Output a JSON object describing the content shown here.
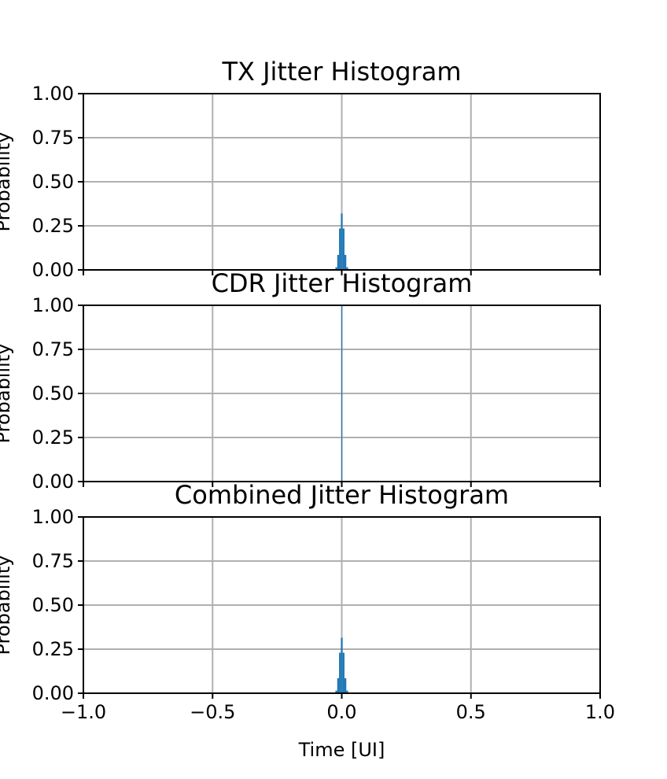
{
  "chart_data": [
    {
      "type": "bar",
      "title": "TX Jitter Histogram",
      "xlabel": "",
      "ylabel": "Probability",
      "xlim": [
        -1.0,
        1.0
      ],
      "ylim": [
        0.0,
        1.0
      ],
      "grid": true,
      "bar_color": "#1f77b4",
      "x_ticks": [
        -1.0,
        -0.5,
        0.0,
        0.5,
        1.0
      ],
      "x_tick_labels": [],
      "y_ticks": [
        0.0,
        0.25,
        0.5,
        0.75,
        1.0
      ],
      "y_tick_labels": [
        "0.00",
        "0.25",
        "0.50",
        "0.75",
        "1.00"
      ],
      "bin_width": 0.007,
      "bins": [
        {
          "x": -0.0245,
          "y": 0.015
        },
        {
          "x": -0.0175,
          "y": 0.085
        },
        {
          "x": -0.0105,
          "y": 0.235
        },
        {
          "x": -0.0035,
          "y": 0.32
        },
        {
          "x": 0.0035,
          "y": 0.235
        },
        {
          "x": 0.0105,
          "y": 0.085
        },
        {
          "x": 0.0175,
          "y": 0.015
        }
      ]
    },
    {
      "type": "bar",
      "title": "CDR Jitter Histogram",
      "xlabel": "",
      "ylabel": "Probability",
      "xlim": [
        -1.0,
        1.0
      ],
      "ylim": [
        0.0,
        1.0
      ],
      "grid": true,
      "bar_color": "#1f77b4",
      "x_ticks": [
        -1.0,
        -0.5,
        0.0,
        0.5,
        1.0
      ],
      "x_tick_labels": [],
      "y_ticks": [
        0.0,
        0.25,
        0.5,
        0.75,
        1.0
      ],
      "y_tick_labels": [
        "0.00",
        "0.25",
        "0.50",
        "0.75",
        "1.00"
      ],
      "bin_width": 0.003,
      "bins": [
        {
          "x": -0.0015,
          "y": 1.0
        }
      ]
    },
    {
      "type": "bar",
      "title": "Combined Jitter Histogram",
      "xlabel": "Time [UI]",
      "ylabel": "Probability",
      "xlim": [
        -1.0,
        1.0
      ],
      "ylim": [
        0.0,
        1.0
      ],
      "grid": true,
      "bar_color": "#1f77b4",
      "x_ticks": [
        -1.0,
        -0.5,
        0.0,
        0.5,
        1.0
      ],
      "x_tick_labels": [
        "−1.0",
        "−0.5",
        "0.0",
        "0.5",
        "1.0"
      ],
      "y_ticks": [
        0.0,
        0.25,
        0.5,
        0.75,
        1.0
      ],
      "y_tick_labels": [
        "0.00",
        "0.25",
        "0.50",
        "0.75",
        "1.00"
      ],
      "bin_width": 0.007,
      "bins": [
        {
          "x": -0.0245,
          "y": 0.015
        },
        {
          "x": -0.0175,
          "y": 0.085
        },
        {
          "x": -0.0105,
          "y": 0.23
        },
        {
          "x": -0.0035,
          "y": 0.315
        },
        {
          "x": 0.0035,
          "y": 0.23
        },
        {
          "x": 0.0105,
          "y": 0.085
        },
        {
          "x": 0.0175,
          "y": 0.015
        }
      ]
    }
  ]
}
